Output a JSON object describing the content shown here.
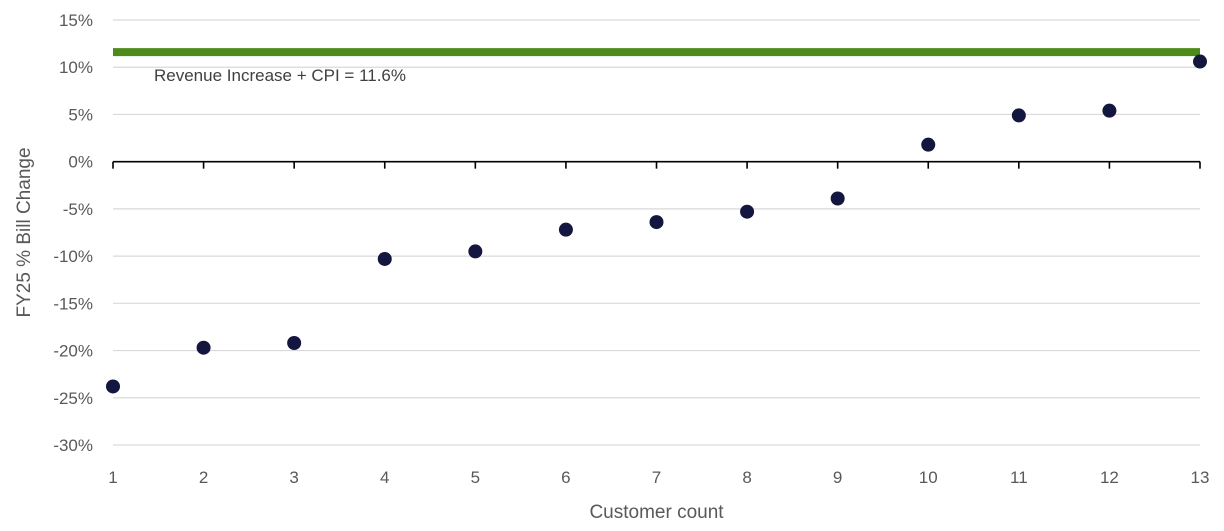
{
  "chart_data": {
    "type": "scatter",
    "title": "",
    "xlabel": "Customer count",
    "ylabel": "FY25 % Bill Change",
    "x": [
      1,
      2,
      3,
      4,
      5,
      6,
      7,
      8,
      9,
      10,
      11,
      12,
      13
    ],
    "y": [
      -23.8,
      -19.7,
      -19.2,
      -10.3,
      -9.5,
      -7.2,
      -6.4,
      -5.3,
      -3.9,
      1.8,
      4.9,
      5.4,
      10.6
    ],
    "xlim": [
      1,
      13
    ],
    "ylim": [
      -30,
      15
    ],
    "x_ticks": [
      "1",
      "2",
      "3",
      "4",
      "5",
      "6",
      "7",
      "8",
      "9",
      "10",
      "11",
      "12",
      "13"
    ],
    "y_ticks": [
      "15%",
      "10%",
      "5%",
      "0%",
      "-5%",
      "-10%",
      "-15%",
      "-20%",
      "-25%",
      "-30%"
    ],
    "y_tick_values": [
      15,
      10,
      5,
      0,
      -5,
      -10,
      -15,
      -20,
      -25,
      -30
    ],
    "reference_line": {
      "value": 11.6,
      "label": "Revenue Increase + CPI = 11.6%"
    },
    "grid": true,
    "legend": "none",
    "colors": {
      "points": "#13163f",
      "reference_line": "#4c8a1a",
      "grid": "#d9d9d9",
      "axis": "#000000",
      "text": "#595959"
    }
  }
}
